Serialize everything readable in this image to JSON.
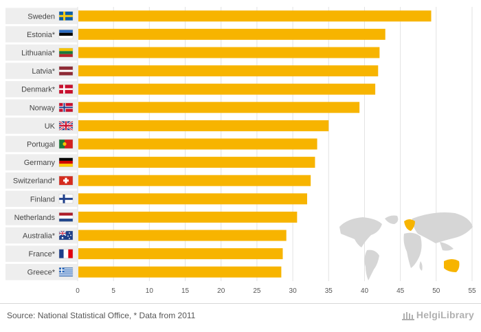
{
  "chart_data": {
    "type": "bar",
    "orientation": "horizontal",
    "categories": [
      "Sweden",
      "Estonia*",
      "Lithuania*",
      "Latvia*",
      "Denmark*",
      "Norway",
      "UK",
      "Portugal",
      "Germany",
      "Switzerland*",
      "Finland",
      "Netherlands",
      "Australia*",
      "France*",
      "Greece*"
    ],
    "values": [
      49.3,
      42.9,
      42.1,
      41.9,
      41.5,
      39.3,
      35.0,
      33.4,
      33.1,
      32.5,
      32.0,
      30.6,
      29.1,
      28.6,
      28.4
    ],
    "xlim": [
      0,
      55
    ],
    "xticks": [
      "0",
      "5",
      "10",
      "15",
      "20",
      "25",
      "30",
      "35",
      "40",
      "45",
      "50",
      "55"
    ],
    "title": "",
    "xlabel": "",
    "ylabel": "",
    "grid": true,
    "bar_color": "#f7b400"
  },
  "flags": [
    "sweden-flag-icon",
    "estonia-flag-icon",
    "lithuania-flag-icon",
    "latvia-flag-icon",
    "denmark-flag-icon",
    "norway-flag-icon",
    "uk-flag-icon",
    "portugal-flag-icon",
    "germany-flag-icon",
    "switzerland-flag-icon",
    "finland-flag-icon",
    "netherlands-flag-icon",
    "australia-flag-icon",
    "france-flag-icon",
    "greece-flag-icon"
  ],
  "map_icon": "world-map-icon",
  "footer": {
    "source": "Source: National Statistical Office, * Data from 2011",
    "brand": "HelgiLibrary",
    "brand_icon": "library-columns-icon"
  }
}
